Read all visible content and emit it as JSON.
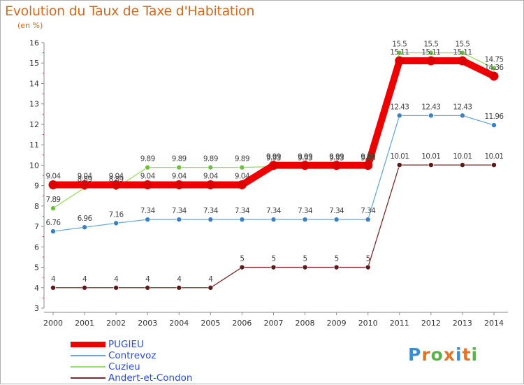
{
  "title": "Evolution du Taux de Taxe d'Habitation",
  "unit": "(en %)",
  "logo": {
    "text": "Proxiti",
    "colors": [
      "#3a8fd4",
      "#e0752a",
      "#5bb24a",
      "#e0752a",
      "#3a8fd4",
      "#e0752a",
      "#5bb24a"
    ]
  },
  "chart_data": {
    "type": "line",
    "title": "Evolution du Taux de Taxe d'Habitation",
    "ylabel": "(en %)",
    "xlabel": "",
    "x": [
      "2000",
      "2001",
      "2002",
      "2003",
      "2004",
      "2005",
      "2006",
      "2007",
      "2008",
      "2009",
      "2010",
      "2011",
      "2012",
      "2013",
      "2014"
    ],
    "ylim": [
      3,
      16
    ],
    "yticks": [
      "3",
      "4",
      "5",
      "6",
      "7",
      "8",
      "9",
      "10",
      "11",
      "12",
      "13",
      "14",
      "15",
      "16"
    ],
    "grid": false,
    "legend_position": "bottom-left",
    "series": [
      {
        "name": "PUGIEU",
        "color": "#ee0000",
        "marker": "#dd0000",
        "values": [
          9.04,
          9.04,
          9.04,
          9.04,
          9.04,
          9.04,
          9.04,
          9.99,
          9.99,
          9.99,
          9.99,
          15.11,
          15.11,
          15.11,
          14.36
        ],
        "labels": [
          "9.04",
          "9.04",
          "9.04",
          "9.04",
          "9.04",
          "9.04",
          "9.04",
          "9.99",
          "9.99",
          "9.99",
          "9.99",
          "15.11",
          "15.11",
          "15.11",
          "14.36"
        ]
      },
      {
        "name": "Contrevoz",
        "color": "#6aa8dc",
        "marker": "#3f7fbf",
        "values": [
          6.76,
          6.96,
          7.16,
          7.34,
          7.34,
          7.34,
          7.34,
          7.34,
          7.34,
          7.34,
          7.34,
          12.43,
          12.43,
          12.43,
          11.96
        ],
        "labels": [
          "6.76",
          "6.96",
          "7.16",
          "7.34",
          "7.34",
          "7.34",
          "7.34",
          "7.34",
          "7.34",
          "7.34",
          "7.34",
          "12.43",
          "12.43",
          "12.43",
          "11.96"
        ]
      },
      {
        "name": "Cuzieu",
        "color": "#99dd66",
        "marker": "#6fbf3f",
        "values": [
          7.89,
          8.89,
          8.89,
          9.89,
          9.89,
          9.89,
          9.89,
          9.93,
          9.93,
          9.93,
          9.93,
          15.5,
          15.5,
          15.5,
          14.75
        ],
        "labels": [
          "7.89",
          "8.89",
          "8.89",
          "9.89",
          "9.89",
          "9.89",
          "9.89",
          "9.93",
          "9.93",
          "9.93",
          "9.93",
          "15.5",
          "15.5",
          "15.5",
          "14.75"
        ]
      },
      {
        "name": "Andert-et-Condon",
        "color": "#7a2a2a",
        "marker": "#5a1a1a",
        "values": [
          4,
          4,
          4,
          4,
          4,
          4,
          5,
          5,
          5,
          5,
          5,
          10.01,
          10.01,
          10.01,
          10.01
        ],
        "labels": [
          "4",
          "4",
          "4",
          "4",
          "4",
          "4",
          "5",
          "5",
          "5",
          "5",
          "5",
          "10.01",
          "10.01",
          "10.01",
          "10.01"
        ]
      }
    ]
  }
}
